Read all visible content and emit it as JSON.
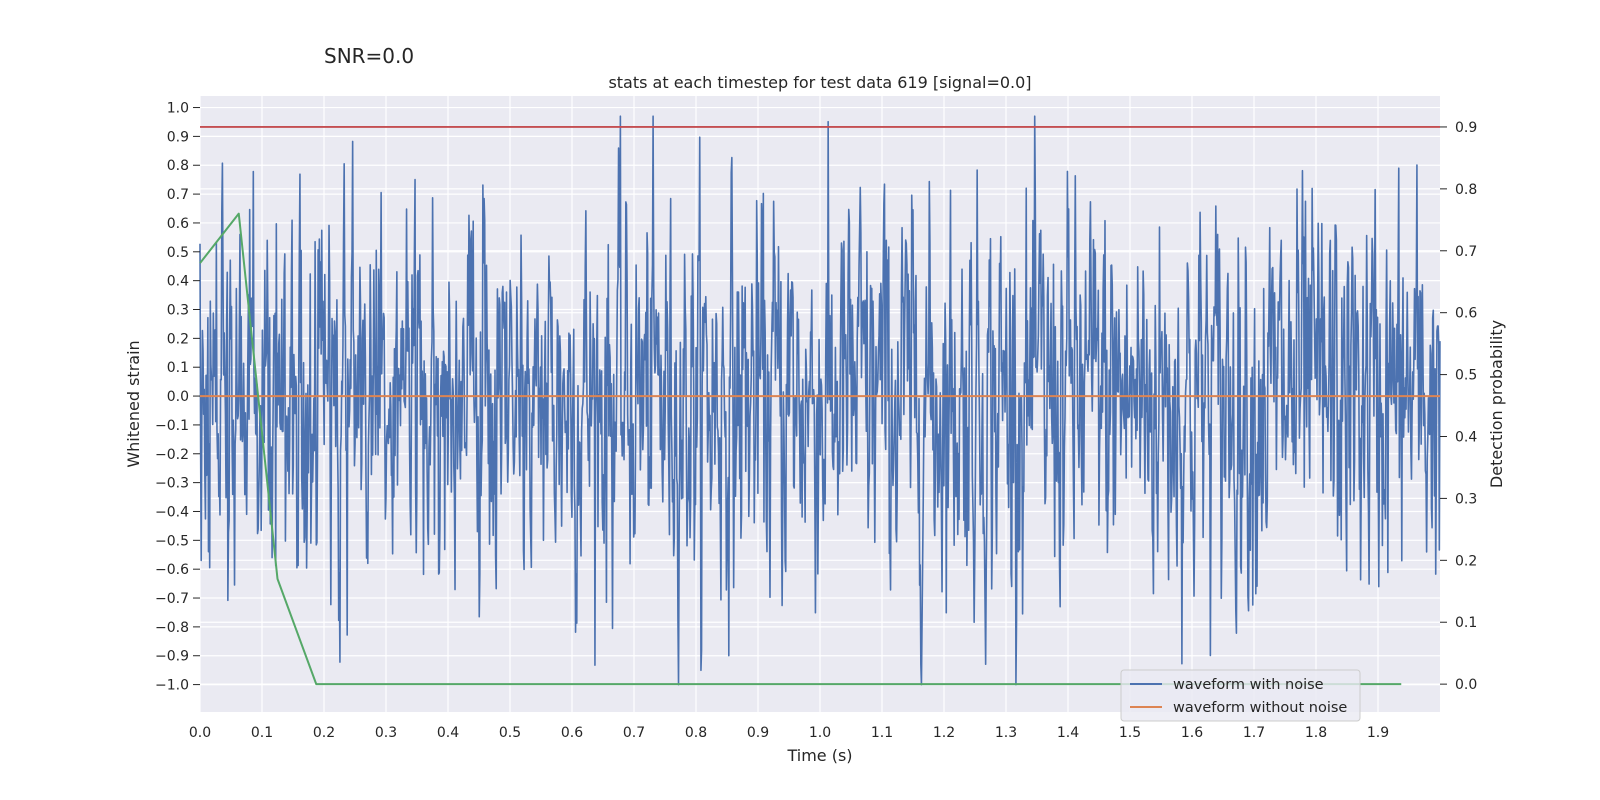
{
  "chart_data": {
    "type": "line",
    "suptitle": "SNR=0.0",
    "title": "stats at each timestep for test data 619 [signal=0.0]",
    "xlabel": "Time (s)",
    "ylabel_left": "Whitened strain",
    "ylabel_right": "Detection probability",
    "xlim": [
      0.0,
      2.0
    ],
    "ylim_left": [
      -1.095,
      1.04
    ],
    "ylim_right": [
      -0.045,
      0.95
    ],
    "x_ticks": [
      "0.0",
      "0.1",
      "0.2",
      "0.3",
      "0.4",
      "0.5",
      "0.6",
      "0.7",
      "0.8",
      "0.9",
      "1.0",
      "1.1",
      "1.2",
      "1.3",
      "1.4",
      "1.5",
      "1.6",
      "1.7",
      "1.8",
      "1.9"
    ],
    "y_left_ticks": [
      "1.0",
      "0.9",
      "0.8",
      "0.7",
      "0.6",
      "0.5",
      "0.4",
      "0.3",
      "0.2",
      "0.1",
      "0.0",
      "−0.1",
      "−0.2",
      "−0.3",
      "−0.4",
      "−0.5",
      "−0.6",
      "−0.7",
      "−0.8",
      "−0.9",
      "−1.0"
    ],
    "y_right_ticks": [
      "0.9",
      "0.8",
      "0.7",
      "0.6",
      "0.5",
      "0.4",
      "0.3",
      "0.2",
      "0.1",
      "0.0"
    ],
    "series": [
      {
        "name": "waveform with noise",
        "axis": "left",
        "color": "#4c72b0",
        "noise": {
          "samples": 2048,
          "dt": 0.000977,
          "min": -1.0,
          "max": 0.97,
          "rms": 0.33
        }
      },
      {
        "name": "waveform without noise",
        "axis": "left",
        "color": "#dd8452",
        "x": [
          0.0,
          2.0
        ],
        "y": [
          0.0,
          0.0
        ]
      },
      {
        "name": "detection probability",
        "axis": "right",
        "color": "#55a868",
        "x": [
          0.0,
          0.0625,
          0.125,
          0.1875,
          0.25,
          0.3125,
          0.5,
          1.0,
          1.5,
          1.9375
        ],
        "y": [
          0.68,
          0.76,
          0.17,
          0.0,
          0.0,
          0.0,
          0.0,
          0.0,
          0.0,
          0.0
        ]
      }
    ],
    "threshold": {
      "axis": "right",
      "value": 0.9,
      "color": "#c44e52"
    },
    "legend": {
      "position": "lower-right",
      "entries": [
        {
          "label": "waveform with noise",
          "color": "#4c72b0"
        },
        {
          "label": "waveform without noise",
          "color": "#dd8452"
        }
      ]
    },
    "colors": {
      "plot_bg": "#eaeaf2",
      "grid": "#ffffff",
      "text": "#262626"
    }
  }
}
